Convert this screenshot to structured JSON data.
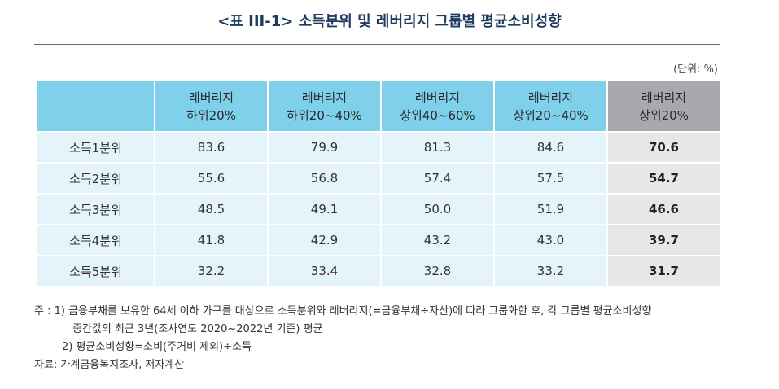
{
  "title": "<표 III-1> 소득분위 및 레버리지 그룹별 평균소비성향",
  "unit": "(단위: %)",
  "table": {
    "columns": [
      {
        "line1": "레버리지",
        "line2": "하위20%"
      },
      {
        "line1": "레버리지",
        "line2": "하위20~40%"
      },
      {
        "line1": "레버리지",
        "line2": "상위40~60%"
      },
      {
        "line1": "레버리지",
        "line2": "상위20~40%"
      },
      {
        "line1": "레버리지",
        "line2": "상위20%"
      }
    ],
    "rows": [
      {
        "label": "소득1분위",
        "values": [
          "83.6",
          "79.9",
          "81.3",
          "84.6",
          "70.6"
        ]
      },
      {
        "label": "소득2분위",
        "values": [
          "55.6",
          "56.8",
          "57.4",
          "57.5",
          "54.7"
        ]
      },
      {
        "label": "소득3분위",
        "values": [
          "48.5",
          "49.1",
          "50.0",
          "51.9",
          "46.6"
        ]
      },
      {
        "label": "소득4분위",
        "values": [
          "41.8",
          "42.9",
          "43.2",
          "43.0",
          "39.7"
        ]
      },
      {
        "label": "소득5분위",
        "values": [
          "32.2",
          "33.4",
          "32.8",
          "33.2",
          "31.7"
        ]
      }
    ]
  },
  "notes": {
    "line1": "주   : 1) 금융부채를 보유한 64세 이하 가구를 대상으로 소득분위와 레버리지(=금융부채÷자산)에 따라 그룹화한 후, 각 그룹별 평균소비성향",
    "line2": "중간값의 최근 3년(조사연도 2020~2022년 기준) 평균",
    "line3": "2) 평균소비성향=소비(주거비 제외)÷소득",
    "source": "자료: 가계금융복지조사, 저자계산"
  }
}
